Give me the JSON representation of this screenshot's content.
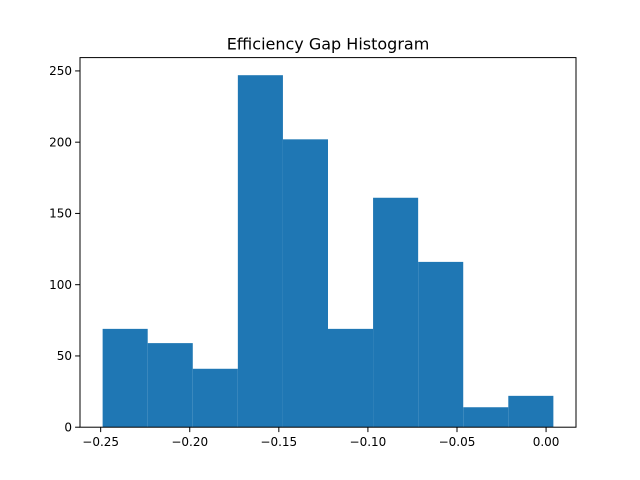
{
  "chart_data": {
    "type": "bar",
    "title": "Efficiency Gap Histogram",
    "xlabel": "",
    "ylabel": "",
    "bin_edges": [
      -0.2489,
      -0.2236,
      -0.1983,
      -0.173,
      -0.1477,
      -0.1224,
      -0.0971,
      -0.0718,
      -0.0465,
      -0.0212,
      0.0041
    ],
    "values": [
      69,
      59,
      41,
      247,
      202,
      69,
      161,
      116,
      14,
      22
    ],
    "xlim": [
      -0.2616,
      0.0168
    ],
    "ylim": [
      0,
      259.35
    ],
    "x_ticks": [
      -0.25,
      -0.2,
      -0.15,
      -0.1,
      -0.05,
      0.0
    ],
    "x_tick_labels": [
      "−0.25",
      "−0.20",
      "−0.15",
      "−0.10",
      "−0.05",
      "0.00"
    ],
    "y_ticks": [
      0,
      50,
      100,
      150,
      200,
      250
    ],
    "y_tick_labels": [
      "0",
      "50",
      "100",
      "150",
      "200",
      "250"
    ],
    "bar_color": "#1f77b4",
    "grid": false,
    "legend": "none"
  }
}
